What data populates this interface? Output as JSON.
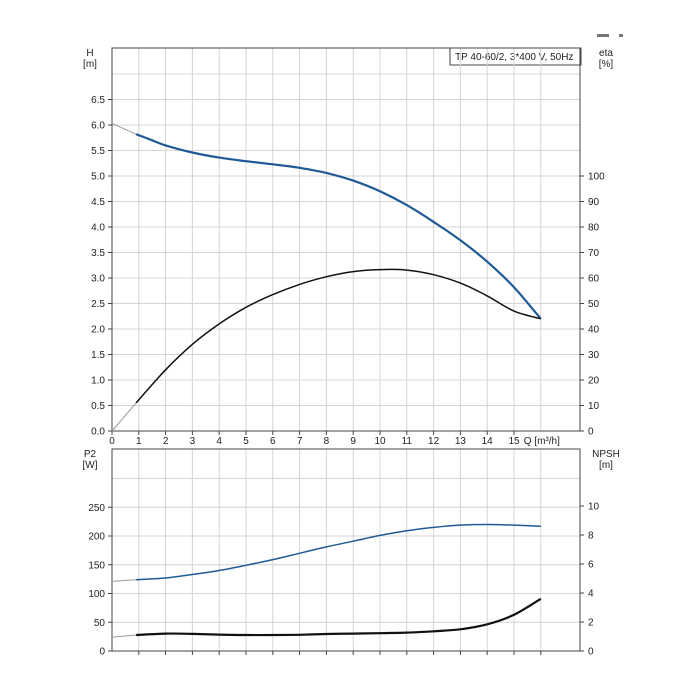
{
  "title": "TP 40-60/2, 3*400 V, 50Hz",
  "colors": {
    "head": "#1f5a96",
    "efficiency": "#111111",
    "power": "#1f5a96",
    "npsh": "#111111",
    "extension": "#9a9a9a"
  },
  "chart_data": [
    {
      "type": "line",
      "panel": "top",
      "xlabel": "Q [m³/h]",
      "xlim": [
        0,
        16
      ],
      "x_ticks": [
        0,
        1,
        2,
        3,
        4,
        5,
        6,
        7,
        8,
        9,
        10,
        11,
        12,
        13,
        14,
        15
      ],
      "left_axis": {
        "label_line1": "H",
        "label_line2": "[m]",
        "ylim": [
          0,
          7
        ],
        "ticks": [
          0.0,
          0.5,
          1.0,
          1.5,
          2.0,
          2.5,
          3.0,
          3.5,
          4.0,
          4.5,
          5.0,
          5.5,
          6.0,
          6.5
        ]
      },
      "right_axis": {
        "label_line1": "eta",
        "label_line2": "[%]",
        "ylim": [
          0,
          140
        ],
        "ticks": [
          0,
          10,
          20,
          30,
          40,
          50,
          60,
          70,
          80,
          90,
          100
        ]
      },
      "series": [
        {
          "key": "head",
          "axis": "left",
          "x": [
            0.9,
            1.5,
            2,
            3,
            4,
            5,
            6,
            7,
            8,
            9,
            10,
            11,
            12,
            13,
            14,
            15,
            16
          ],
          "y": [
            5.82,
            5.7,
            5.6,
            5.46,
            5.36,
            5.29,
            5.23,
            5.16,
            5.06,
            4.91,
            4.7,
            4.43,
            4.1,
            3.74,
            3.32,
            2.82,
            2.2
          ],
          "extension_x": [
            0,
            0.9
          ],
          "extension_y": [
            6.03,
            5.82
          ]
        },
        {
          "key": "efficiency",
          "axis": "right",
          "x": [
            0.9,
            2,
            3,
            4,
            5,
            6,
            7,
            8,
            9,
            10,
            11,
            12,
            13,
            14,
            15,
            16
          ],
          "y": [
            11,
            24,
            34,
            42,
            48.5,
            53.5,
            57.5,
            60.5,
            62.5,
            63.3,
            63.1,
            61.3,
            58,
            53,
            47,
            44
          ],
          "extension_x": [
            0,
            0.9
          ],
          "extension_y": [
            0,
            11
          ]
        }
      ]
    },
    {
      "type": "line",
      "panel": "bottom",
      "xlim": [
        0,
        16
      ],
      "left_axis": {
        "label_line1": "P2",
        "label_line2": "[W]",
        "ylim": [
          0,
          300
        ],
        "ticks": [
          0,
          50,
          100,
          150,
          200,
          250
        ]
      },
      "right_axis": {
        "label_line1": "NPSH",
        "label_line2": "[m]",
        "ylim": [
          0,
          12
        ],
        "ticks": [
          0,
          2,
          4,
          6,
          8,
          10
        ]
      },
      "series": [
        {
          "key": "power",
          "axis": "left",
          "x": [
            0.9,
            2,
            3,
            4,
            5,
            6,
            7,
            8,
            9,
            10,
            11,
            12,
            13,
            14,
            15,
            16
          ],
          "y": [
            124,
            127,
            133,
            140,
            149,
            159,
            170,
            181,
            191,
            201,
            209,
            215,
            219,
            220,
            219,
            217
          ],
          "extension_x": [
            0,
            0.9
          ],
          "extension_y": [
            121,
            124
          ]
        },
        {
          "key": "npsh",
          "axis": "right",
          "x": [
            0.9,
            2,
            3,
            4,
            5,
            6,
            7,
            8,
            9,
            10,
            11,
            12,
            13,
            14,
            15,
            16
          ],
          "y": [
            1.1,
            1.2,
            1.18,
            1.13,
            1.1,
            1.1,
            1.12,
            1.17,
            1.2,
            1.23,
            1.27,
            1.36,
            1.5,
            1.84,
            2.5,
            3.6
          ],
          "extension_x": [
            0,
            0.9
          ],
          "extension_y": [
            0.95,
            1.1
          ]
        }
      ]
    }
  ]
}
